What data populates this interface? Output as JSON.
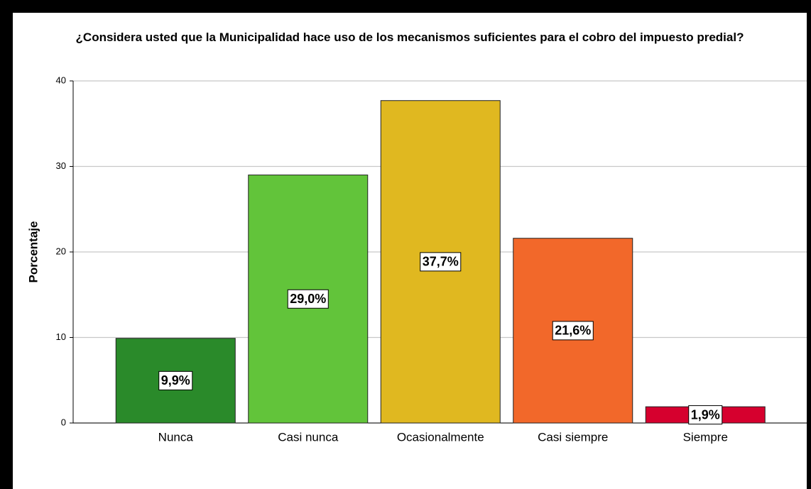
{
  "chart_data": {
    "type": "bar",
    "title": "¿Considera usted que la Municipalidad hace uso de los mecanismos suficientes para el cobro del impuesto predial?",
    "ylabel": "Porcentaje",
    "categories": [
      "Nunca",
      "Casi nunca",
      "Ocasionalmente",
      "Casi siempre",
      "Siempre"
    ],
    "values": [
      9.9,
      29.0,
      37.7,
      21.6,
      1.9
    ],
    "value_labels": [
      "9,9%",
      "29,0%",
      "37,7%",
      "21,6%",
      "1,9%"
    ],
    "colors": [
      "#2a8a2a",
      "#62c43a",
      "#e0b820",
      "#f2682a",
      "#d6002e"
    ],
    "ylim": [
      0,
      40
    ],
    "yticks": [
      0,
      10,
      20,
      30,
      40
    ],
    "grid": true
  }
}
